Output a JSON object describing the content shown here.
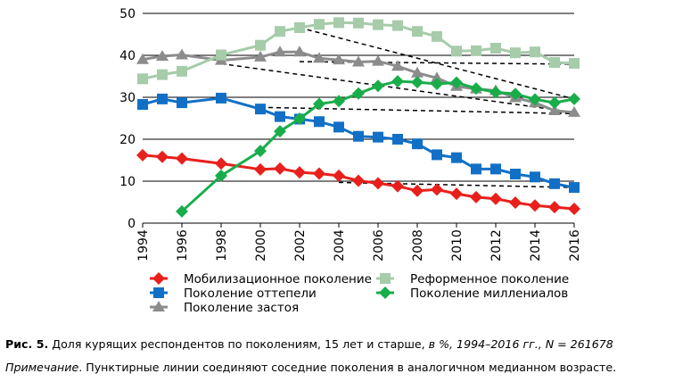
{
  "chart_data": {
    "type": "line",
    "x": [
      1994,
      1995,
      1996,
      1997,
      1998,
      1999,
      2000,
      2001,
      2002,
      2003,
      2004,
      2005,
      2006,
      2007,
      2008,
      2009,
      2010,
      2011,
      2012,
      2013,
      2014,
      2015,
      2016
    ],
    "xticks": [
      1994,
      1996,
      1998,
      2000,
      2002,
      2004,
      2006,
      2008,
      2010,
      2012,
      2014,
      2016
    ],
    "ylim": [
      0,
      50
    ],
    "yticks": [
      0,
      10,
      20,
      30,
      40,
      50
    ],
    "grid": "horizontal",
    "legend_position": "bottom",
    "series": [
      {
        "name": "Мобилизационное поколение",
        "color": "#e8201c",
        "marker": "diamond",
        "values": [
          16.2,
          15.8,
          15.4,
          null,
          14.2,
          null,
          12.8,
          13.0,
          12.1,
          11.8,
          11.3,
          10.1,
          9.5,
          8.8,
          7.7,
          8.0,
          7.0,
          6.2,
          5.8,
          4.9,
          4.2,
          3.8,
          3.4
        ]
      },
      {
        "name": "Поколение оттепели",
        "color": "#1170c6",
        "marker": "square",
        "values": [
          28.3,
          29.6,
          28.7,
          null,
          29.8,
          null,
          27.2,
          25.4,
          24.8,
          24.2,
          22.9,
          20.7,
          20.5,
          20.0,
          18.9,
          16.3,
          15.6,
          12.9,
          12.9,
          11.7,
          11.0,
          9.4,
          8.5
        ]
      },
      {
        "name": "Поколение застоя",
        "color": "#8c8c8c",
        "marker": "triangle",
        "values": [
          39.0,
          39.8,
          40.1,
          null,
          38.8,
          null,
          39.6,
          40.8,
          40.8,
          39.3,
          38.9,
          38.4,
          38.6,
          37.4,
          35.8,
          34.6,
          32.6,
          32.0,
          31.6,
          29.9,
          28.7,
          26.8,
          26.4
        ]
      },
      {
        "name": "Реформенное поколение",
        "color": "#a6ccaa",
        "marker": "square",
        "values": [
          34.4,
          35.4,
          36.2,
          null,
          40.1,
          null,
          42.4,
          45.7,
          46.6,
          47.4,
          47.8,
          47.7,
          47.3,
          47.1,
          45.7,
          44.5,
          41.0,
          41.1,
          41.7,
          40.6,
          40.8,
          38.3,
          38.1
        ]
      },
      {
        "name": "Поколение миллениалов",
        "color": "#19ad4a",
        "marker": "diamond",
        "values": [
          null,
          null,
          2.8,
          null,
          11.3,
          null,
          17.2,
          21.9,
          24.9,
          28.4,
          29.1,
          30.9,
          32.7,
          33.8,
          33.6,
          33.2,
          33.5,
          32.1,
          31.2,
          30.8,
          29.5,
          28.7,
          29.6
        ]
      }
    ],
    "dashed_lines": [
      {
        "from": [
          2002,
          46.6
        ],
        "to": [
          2016,
          29.6
        ]
      },
      {
        "from": [
          2002,
          38.5
        ],
        "to": [
          2016,
          37.9
        ]
      },
      {
        "from": [
          1998,
          38.0
        ],
        "to": [
          2016,
          26.4
        ]
      },
      {
        "from": [
          2000,
          27.6
        ],
        "to": [
          2016,
          26.1
        ]
      },
      {
        "from": [
          2004,
          9.7
        ],
        "to": [
          2016,
          8.5
        ]
      }
    ]
  },
  "caption": {
    "label": "Рис. 5.",
    "text_main": " Доля курящих респондентов по поколениям, 15 лет и старше, ",
    "text_italic": "в %, 1994–2016 гг., N = 261678",
    "note_label": "Примечание",
    "note_text": ". Пунктирные линии соединяют соседние поколения в аналогичном медианном возрасте."
  }
}
